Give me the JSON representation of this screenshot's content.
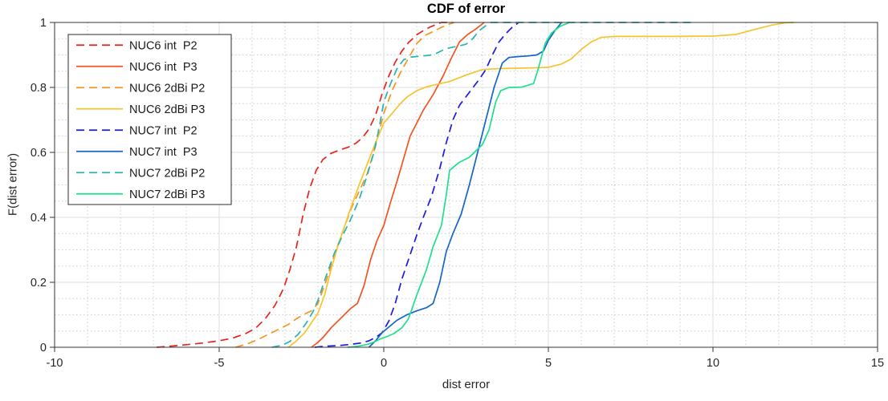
{
  "figure": {
    "title": "CDF of error",
    "xlabel": "dist error",
    "ylabel": "F(dist error)"
  },
  "chart_data": {
    "type": "line",
    "subtype": "empirical-cdf",
    "title": "CDF of error",
    "xlabel": "dist error",
    "ylabel": "F(dist error)",
    "xlim": [
      -10,
      15
    ],
    "ylim": [
      0,
      1
    ],
    "xticks": [
      "-10",
      "-5",
      "0",
      "5",
      "10",
      "15"
    ],
    "xtick_values": [
      -10,
      -5,
      0,
      5,
      10,
      15
    ],
    "yticks": [
      "0",
      "0.2",
      "0.4",
      "0.6",
      "0.8",
      "1"
    ],
    "ytick_values": [
      0,
      0.2,
      0.4,
      0.6,
      0.8,
      1
    ],
    "grid": true,
    "minor_grid": true,
    "x_minor_step": 1,
    "y_minor_step": 0.05,
    "legend_position": "top-left",
    "colors": {
      "axis_box": "#333333",
      "tick_text": "#262626",
      "major_grid": "#dcdcdc",
      "minor_grid": "#cccccc",
      "legend_border": "#2b2b2b",
      "legend_bg": "#ffffff"
    },
    "series": [
      {
        "name": "NUC6 int  P2",
        "color": "#e8231c",
        "style": "dashed",
        "points": [
          [
            -6.9,
            0
          ],
          [
            -6.4,
            0.004
          ],
          [
            -6,
            0.008
          ],
          [
            -5.5,
            0.013
          ],
          [
            -5,
            0.02
          ],
          [
            -4.6,
            0.028
          ],
          [
            -4.2,
            0.042
          ],
          [
            -3.9,
            0.058
          ],
          [
            -3.6,
            0.088
          ],
          [
            -3.3,
            0.13
          ],
          [
            -3.05,
            0.18
          ],
          [
            -2.85,
            0.24
          ],
          [
            -2.65,
            0.31
          ],
          [
            -2.45,
            0.41
          ],
          [
            -2.25,
            0.49
          ],
          [
            -2.05,
            0.545
          ],
          [
            -1.85,
            0.578
          ],
          [
            -1.6,
            0.597
          ],
          [
            -1.35,
            0.607
          ],
          [
            -1.05,
            0.617
          ],
          [
            -0.85,
            0.628
          ],
          [
            -0.65,
            0.645
          ],
          [
            -0.45,
            0.672
          ],
          [
            -0.25,
            0.715
          ],
          [
            -0.05,
            0.78
          ],
          [
            0.15,
            0.835
          ],
          [
            0.35,
            0.878
          ],
          [
            0.55,
            0.912
          ],
          [
            0.75,
            0.938
          ],
          [
            1,
            0.962
          ],
          [
            1.25,
            0.978
          ],
          [
            1.45,
            0.988
          ],
          [
            1.75,
            1
          ],
          [
            2.1,
            1
          ]
        ]
      },
      {
        "name": "NUC6 int  P3",
        "color": "#f4531f",
        "style": "solid",
        "points": [
          [
            -2.2,
            0
          ],
          [
            -2,
            0.015
          ],
          [
            -1.85,
            0.03
          ],
          [
            -1.6,
            0.06
          ],
          [
            -1.4,
            0.08
          ],
          [
            -1.2,
            0.1
          ],
          [
            -1,
            0.12
          ],
          [
            -0.8,
            0.135
          ],
          [
            -0.6,
            0.19
          ],
          [
            -0.4,
            0.27
          ],
          [
            -0.2,
            0.33
          ],
          [
            0,
            0.375
          ],
          [
            0.2,
            0.445
          ],
          [
            0.4,
            0.51
          ],
          [
            0.6,
            0.58
          ],
          [
            0.8,
            0.65
          ],
          [
            1,
            0.69
          ],
          [
            1.2,
            0.73
          ],
          [
            1.5,
            0.778
          ],
          [
            1.8,
            0.835
          ],
          [
            2.05,
            0.89
          ],
          [
            2.3,
            0.94
          ],
          [
            2.55,
            0.963
          ],
          [
            2.8,
            0.98
          ],
          [
            3.05,
            1
          ]
        ]
      },
      {
        "name": "NUC6 2dBi P2",
        "color": "#f79321",
        "style": "dashed",
        "points": [
          [
            -4.5,
            0
          ],
          [
            -4.1,
            0.012
          ],
          [
            -3.8,
            0.025
          ],
          [
            -3.5,
            0.04
          ],
          [
            -3.2,
            0.055
          ],
          [
            -2.9,
            0.07
          ],
          [
            -2.65,
            0.088
          ],
          [
            -2.45,
            0.1
          ],
          [
            -2.2,
            0.112
          ],
          [
            -2,
            0.135
          ],
          [
            -1.75,
            0.205
          ],
          [
            -1.5,
            0.285
          ],
          [
            -1.25,
            0.355
          ],
          [
            -1,
            0.425
          ],
          [
            -0.75,
            0.48
          ],
          [
            -0.5,
            0.535
          ],
          [
            -0.25,
            0.62
          ],
          [
            0,
            0.72
          ],
          [
            0.25,
            0.79
          ],
          [
            0.5,
            0.845
          ],
          [
            0.75,
            0.89
          ],
          [
            1,
            0.935
          ],
          [
            1.25,
            0.96
          ],
          [
            1.5,
            0.972
          ],
          [
            1.75,
            0.985
          ],
          [
            2,
            0.995
          ],
          [
            2.15,
            1
          ]
        ]
      },
      {
        "name": "NUC6 2dBi P3",
        "color": "#f5c42e",
        "style": "solid",
        "points": [
          [
            -2.9,
            0
          ],
          [
            -2.65,
            0.02
          ],
          [
            -2.4,
            0.045
          ],
          [
            -2.2,
            0.075
          ],
          [
            -2,
            0.105
          ],
          [
            -1.8,
            0.16
          ],
          [
            -1.6,
            0.24
          ],
          [
            -1.4,
            0.31
          ],
          [
            -1.2,
            0.37
          ],
          [
            -1,
            0.43
          ],
          [
            -0.75,
            0.5
          ],
          [
            -0.5,
            0.565
          ],
          [
            -0.25,
            0.63
          ],
          [
            0,
            0.69
          ],
          [
            0.25,
            0.72
          ],
          [
            0.5,
            0.75
          ],
          [
            0.7,
            0.77
          ],
          [
            1,
            0.79
          ],
          [
            1.25,
            0.8
          ],
          [
            1.5,
            0.807
          ],
          [
            2,
            0.818
          ],
          [
            2.5,
            0.838
          ],
          [
            3,
            0.855
          ],
          [
            3.5,
            0.858
          ],
          [
            4,
            0.859
          ],
          [
            4.5,
            0.86
          ],
          [
            5,
            0.862
          ],
          [
            5.4,
            0.872
          ],
          [
            5.7,
            0.888
          ],
          [
            6,
            0.917
          ],
          [
            6.3,
            0.94
          ],
          [
            6.6,
            0.954
          ],
          [
            7,
            0.957
          ],
          [
            8,
            0.957
          ],
          [
            9,
            0.957
          ],
          [
            10,
            0.958
          ],
          [
            10.7,
            0.963
          ],
          [
            11,
            0.971
          ],
          [
            11.4,
            0.982
          ],
          [
            11.8,
            0.992
          ],
          [
            12.2,
            0.999
          ],
          [
            12.45,
            1
          ]
        ]
      },
      {
        "name": "NUC7 int  P2",
        "color": "#1a1ae0",
        "style": "dashed",
        "points": [
          [
            -2.1,
            0
          ],
          [
            -1.8,
            0.003
          ],
          [
            -1.4,
            0.005
          ],
          [
            -1,
            0.009
          ],
          [
            -0.7,
            0.013
          ],
          [
            -0.45,
            0.02
          ],
          [
            -0.25,
            0.03
          ],
          [
            -0.05,
            0.045
          ],
          [
            0.15,
            0.08
          ],
          [
            0.35,
            0.135
          ],
          [
            0.55,
            0.21
          ],
          [
            0.8,
            0.285
          ],
          [
            1,
            0.345
          ],
          [
            1.2,
            0.4
          ],
          [
            1.45,
            0.465
          ],
          [
            1.7,
            0.55
          ],
          [
            1.9,
            0.63
          ],
          [
            2.1,
            0.7
          ],
          [
            2.3,
            0.745
          ],
          [
            2.6,
            0.785
          ],
          [
            2.9,
            0.825
          ],
          [
            3.1,
            0.855
          ],
          [
            3.3,
            0.9
          ],
          [
            3.5,
            0.94
          ],
          [
            3.7,
            0.965
          ],
          [
            3.9,
            0.985
          ],
          [
            4.1,
            1
          ]
        ]
      },
      {
        "name": "NUC7 int  P3",
        "color": "#1465c8",
        "style": "solid",
        "points": [
          [
            -0.45,
            0
          ],
          [
            -0.25,
            0.02
          ],
          [
            -0.05,
            0.045
          ],
          [
            0.15,
            0.062
          ],
          [
            0.4,
            0.083
          ],
          [
            0.7,
            0.1
          ],
          [
            1,
            0.112
          ],
          [
            1.3,
            0.122
          ],
          [
            1.5,
            0.135
          ],
          [
            1.7,
            0.2
          ],
          [
            1.9,
            0.295
          ],
          [
            2.1,
            0.35
          ],
          [
            2.35,
            0.41
          ],
          [
            2.6,
            0.5
          ],
          [
            2.85,
            0.6
          ],
          [
            3.1,
            0.7
          ],
          [
            3.35,
            0.8
          ],
          [
            3.6,
            0.875
          ],
          [
            3.8,
            0.892
          ],
          [
            4.1,
            0.895
          ],
          [
            4.4,
            0.897
          ],
          [
            4.65,
            0.9
          ],
          [
            4.85,
            0.912
          ],
          [
            5,
            0.945
          ],
          [
            5.2,
            0.975
          ],
          [
            5.4,
            1
          ]
        ]
      },
      {
        "name": "NUC7 2dBi P2",
        "color": "#28b4b4",
        "style": "dashed",
        "points": [
          [
            -3.4,
            0
          ],
          [
            -3.1,
            0.006
          ],
          [
            -2.85,
            0.018
          ],
          [
            -2.6,
            0.04
          ],
          [
            -2.35,
            0.075
          ],
          [
            -2.15,
            0.11
          ],
          [
            -2,
            0.145
          ],
          [
            -1.75,
            0.22
          ],
          [
            -1.5,
            0.29
          ],
          [
            -1.25,
            0.345
          ],
          [
            -1,
            0.395
          ],
          [
            -0.75,
            0.455
          ],
          [
            -0.5,
            0.53
          ],
          [
            -0.3,
            0.6
          ],
          [
            -0.15,
            0.67
          ],
          [
            0,
            0.755
          ],
          [
            0.2,
            0.81
          ],
          [
            0.4,
            0.857
          ],
          [
            0.6,
            0.885
          ],
          [
            0.8,
            0.893
          ],
          [
            1.1,
            0.896
          ],
          [
            1.4,
            0.899
          ],
          [
            1.6,
            0.905
          ],
          [
            1.8,
            0.915
          ],
          [
            2,
            0.922
          ],
          [
            2.3,
            0.928
          ],
          [
            2.5,
            0.933
          ],
          [
            2.7,
            0.95
          ],
          [
            2.9,
            0.975
          ],
          [
            3.1,
            0.99
          ],
          [
            3.25,
            1
          ],
          [
            6,
            1
          ],
          [
            9.35,
            1
          ]
        ]
      },
      {
        "name": "NUC7 2dBi P3",
        "color": "#1ee08c",
        "style": "solid",
        "points": [
          [
            -1.1,
            0
          ],
          [
            -0.8,
            0.003
          ],
          [
            -0.5,
            0.009
          ],
          [
            -0.3,
            0.016
          ],
          [
            -0.1,
            0.026
          ],
          [
            0.1,
            0.033
          ],
          [
            0.3,
            0.042
          ],
          [
            0.55,
            0.06
          ],
          [
            0.75,
            0.088
          ],
          [
            1,
            0.16
          ],
          [
            1.3,
            0.24
          ],
          [
            1.5,
            0.31
          ],
          [
            1.75,
            0.375
          ],
          [
            1.9,
            0.47
          ],
          [
            2,
            0.545
          ],
          [
            2.3,
            0.57
          ],
          [
            2.6,
            0.585
          ],
          [
            2.8,
            0.605
          ],
          [
            3,
            0.625
          ],
          [
            3.2,
            0.67
          ],
          [
            3.4,
            0.755
          ],
          [
            3.55,
            0.79
          ],
          [
            3.8,
            0.8
          ],
          [
            4.2,
            0.801
          ],
          [
            4.55,
            0.812
          ],
          [
            4.7,
            0.86
          ],
          [
            4.9,
            0.935
          ],
          [
            5.1,
            0.968
          ],
          [
            5.35,
            0.988
          ],
          [
            5.65,
            1
          ]
        ]
      }
    ]
  }
}
